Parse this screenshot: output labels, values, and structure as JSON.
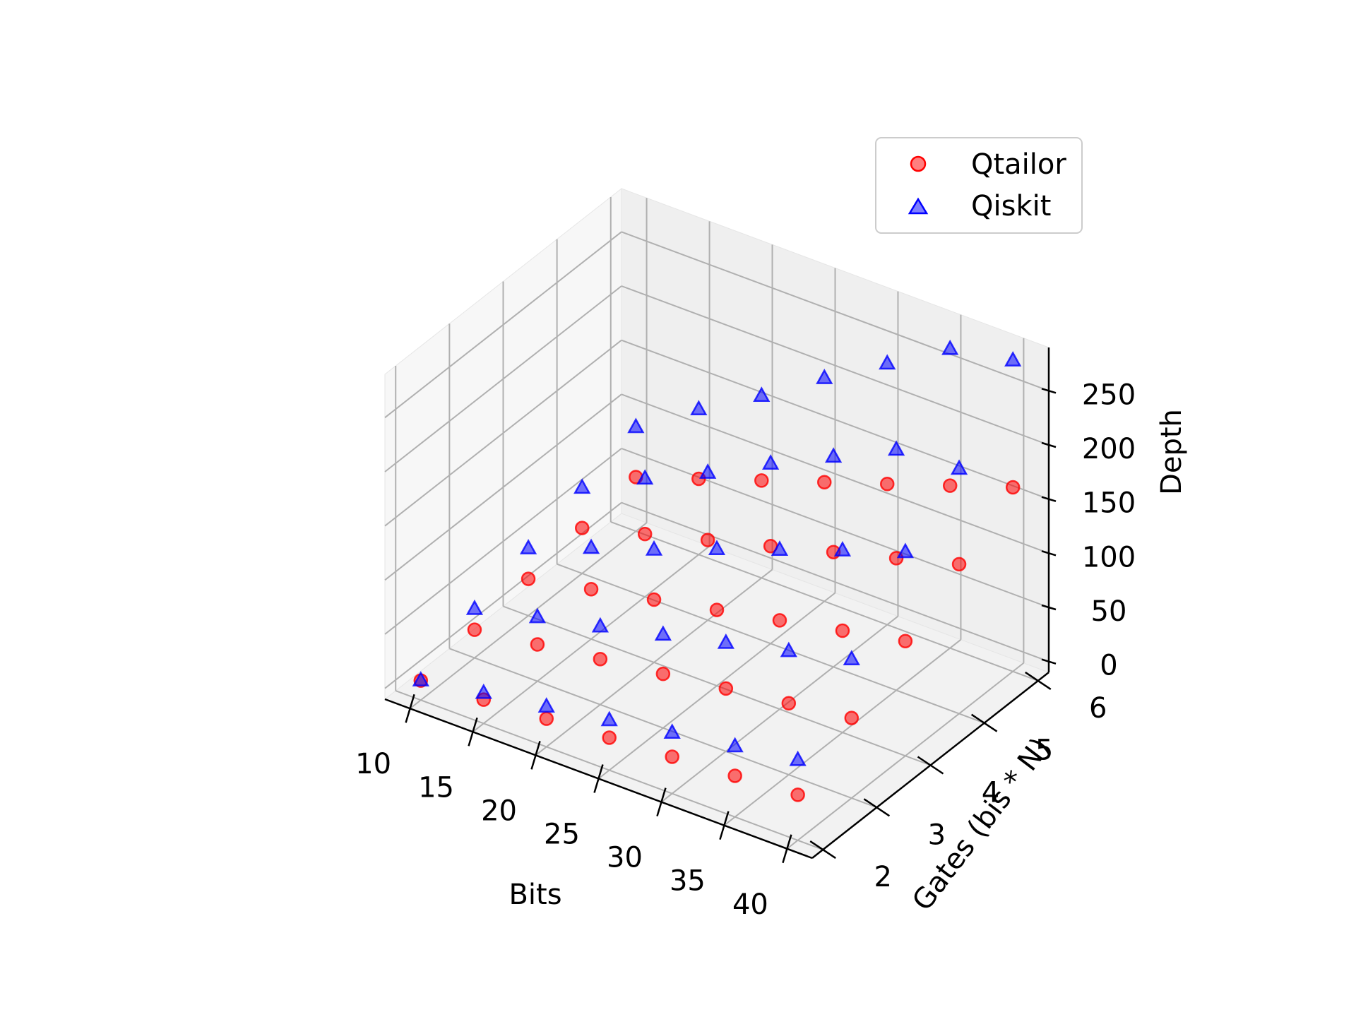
{
  "chart_data": {
    "type": "scatter3d",
    "xlabel": "Bits",
    "ylabel": "Gates (bis * N)",
    "zlabel": "Depth",
    "xlim": [
      8,
      42
    ],
    "ylim": [
      1.8,
      6.2
    ],
    "zlim": [
      -10,
      290
    ],
    "xticks": [
      10,
      15,
      20,
      25,
      30,
      35,
      40
    ],
    "yticks": [
      2,
      3,
      4,
      5,
      6
    ],
    "zticks": [
      0,
      50,
      100,
      150,
      200,
      250
    ],
    "grid": true,
    "legend_position": "top-right",
    "series": [
      {
        "name": "Qtailor",
        "marker": "circle",
        "color": "#ff0000",
        "points": [
          {
            "x": 10,
            "y": 2,
            "z": 8
          },
          {
            "x": 10,
            "y": 3,
            "z": 16
          },
          {
            "x": 10,
            "y": 4,
            "z": 24
          },
          {
            "x": 10,
            "y": 5,
            "z": 32
          },
          {
            "x": 10,
            "y": 6,
            "z": 40
          },
          {
            "x": 15,
            "y": 2,
            "z": 12
          },
          {
            "x": 15,
            "y": 3,
            "z": 24
          },
          {
            "x": 15,
            "y": 4,
            "z": 36
          },
          {
            "x": 15,
            "y": 5,
            "z": 48
          },
          {
            "x": 15,
            "y": 6,
            "z": 60
          },
          {
            "x": 20,
            "y": 2,
            "z": 16
          },
          {
            "x": 20,
            "y": 3,
            "z": 32
          },
          {
            "x": 20,
            "y": 4,
            "z": 48
          },
          {
            "x": 20,
            "y": 5,
            "z": 64
          },
          {
            "x": 20,
            "y": 6,
            "z": 80
          },
          {
            "x": 25,
            "y": 2,
            "z": 20
          },
          {
            "x": 25,
            "y": 3,
            "z": 40
          },
          {
            "x": 25,
            "y": 4,
            "z": 60
          },
          {
            "x": 25,
            "y": 5,
            "z": 80
          },
          {
            "x": 25,
            "y": 6,
            "z": 100
          },
          {
            "x": 30,
            "y": 2,
            "z": 24
          },
          {
            "x": 30,
            "y": 3,
            "z": 48
          },
          {
            "x": 30,
            "y": 4,
            "z": 72
          },
          {
            "x": 30,
            "y": 5,
            "z": 96
          },
          {
            "x": 30,
            "y": 6,
            "z": 120
          },
          {
            "x": 35,
            "y": 2,
            "z": 28
          },
          {
            "x": 35,
            "y": 3,
            "z": 56
          },
          {
            "x": 35,
            "y": 4,
            "z": 84
          },
          {
            "x": 35,
            "y": 5,
            "z": 112
          },
          {
            "x": 35,
            "y": 6,
            "z": 140
          },
          {
            "x": 40,
            "y": 2,
            "z": 32
          },
          {
            "x": 40,
            "y": 3,
            "z": 64
          },
          {
            "x": 40,
            "y": 4,
            "z": 96
          },
          {
            "x": 40,
            "y": 5,
            "z": 128
          },
          {
            "x": 40,
            "y": 6,
            "z": 160
          }
        ]
      },
      {
        "name": "Qiskit",
        "marker": "triangle",
        "color": "#0000ff",
        "points": [
          {
            "x": 10,
            "y": 2,
            "z": 8
          },
          {
            "x": 10,
            "y": 3,
            "z": 35
          },
          {
            "x": 10,
            "y": 4,
            "z": 52
          },
          {
            "x": 10,
            "y": 5,
            "z": 69
          },
          {
            "x": 10,
            "y": 6,
            "z": 86
          },
          {
            "x": 15,
            "y": 2,
            "z": 18
          },
          {
            "x": 15,
            "y": 3,
            "z": 49
          },
          {
            "x": 15,
            "y": 4,
            "z": 74
          },
          {
            "x": 15,
            "y": 5,
            "z": 99
          },
          {
            "x": 15,
            "y": 6,
            "z": 124
          },
          {
            "x": 20,
            "y": 2,
            "z": 27
          },
          {
            "x": 20,
            "y": 3,
            "z": 62
          },
          {
            "x": 20,
            "y": 4,
            "z": 94
          },
          {
            "x": 20,
            "y": 5,
            "z": 126
          },
          {
            "x": 20,
            "y": 6,
            "z": 158
          },
          {
            "x": 25,
            "y": 2,
            "z": 36
          },
          {
            "x": 25,
            "y": 3,
            "z": 76
          },
          {
            "x": 25,
            "y": 4,
            "z": 116
          },
          {
            "x": 25,
            "y": 5,
            "z": 156
          },
          {
            "x": 25,
            "y": 6,
            "z": 196
          },
          {
            "x": 30,
            "y": 2,
            "z": 46
          },
          {
            "x": 30,
            "y": 3,
            "z": 90
          },
          {
            "x": 30,
            "y": 4,
            "z": 137
          },
          {
            "x": 30,
            "y": 5,
            "z": 184
          },
          {
            "x": 30,
            "y": 6,
            "z": 231
          },
          {
            "x": 35,
            "y": 2,
            "z": 55
          },
          {
            "x": 35,
            "y": 3,
            "z": 104
          },
          {
            "x": 35,
            "y": 4,
            "z": 158
          },
          {
            "x": 35,
            "y": 5,
            "z": 212
          },
          {
            "x": 35,
            "y": 6,
            "z": 266
          },
          {
            "x": 40,
            "y": 2,
            "z": 64
          },
          {
            "x": 40,
            "y": 3,
            "z": 118
          },
          {
            "x": 40,
            "y": 4,
            "z": 178
          },
          {
            "x": 40,
            "y": 5,
            "z": 216
          },
          {
            "x": 40,
            "y": 6,
            "z": 277
          }
        ]
      }
    ]
  }
}
